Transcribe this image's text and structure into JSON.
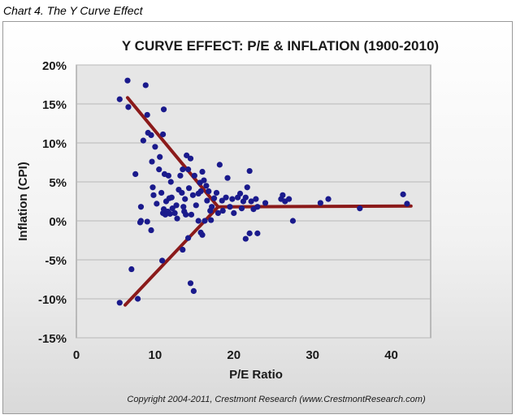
{
  "caption": "Chart 4. The Y Curve Effect",
  "copyright": "Copyright 2004-2011,  Crestmont Research (www.CrestmontResearch.com)",
  "colors": {
    "points": "#1a1a8c",
    "trend": "#8b1a1a",
    "plot_bg": "#e6e6e6",
    "grid": "#b8b8b8"
  },
  "chart_data": {
    "type": "scatter",
    "title": "Y CURVE EFFECT: P/E & INFLATION (1900-2010)",
    "xlabel": "P/E Ratio",
    "ylabel": "Inflation (CPI)",
    "xlim": [
      0,
      45
    ],
    "ylim": [
      -15,
      20
    ],
    "x_ticks": [
      0,
      10,
      20,
      30,
      40
    ],
    "y_ticks": [
      20,
      15,
      10,
      5,
      0,
      -5,
      -10,
      -15
    ],
    "x_tick_labels": [
      "0",
      "10",
      "20",
      "30",
      "40"
    ],
    "y_tick_labels": [
      "20%",
      "15%",
      "10%",
      "5%",
      "0%",
      "-5%",
      "-10%",
      "-15%"
    ],
    "grid": "horizontal",
    "series": [
      {
        "type": "scatter",
        "points": [
          [
            5.5,
            15.6
          ],
          [
            6.5,
            18.0
          ],
          [
            6.6,
            14.6
          ],
          [
            7.5,
            6.0
          ],
          [
            8.2,
            1.8
          ],
          [
            8.5,
            10.3
          ],
          [
            8.8,
            17.4
          ],
          [
            9.0,
            13.6
          ],
          [
            9.1,
            11.3
          ],
          [
            9.5,
            11.0
          ],
          [
            9.6,
            7.6
          ],
          [
            9.7,
            4.3
          ],
          [
            9.8,
            3.3
          ],
          [
            10.0,
            9.5
          ],
          [
            10.2,
            2.2
          ],
          [
            10.5,
            6.6
          ],
          [
            10.6,
            8.2
          ],
          [
            10.8,
            3.6
          ],
          [
            11.0,
            11.1
          ],
          [
            11.1,
            14.3
          ],
          [
            11.2,
            6.0
          ],
          [
            11.0,
            1.0
          ],
          [
            11.1,
            1.5
          ],
          [
            11.3,
            0.8
          ],
          [
            11.4,
            2.5
          ],
          [
            11.6,
            1.2
          ],
          [
            11.7,
            5.8
          ],
          [
            11.8,
            2.9
          ],
          [
            11.9,
            0.9
          ],
          [
            12.0,
            5.0
          ],
          [
            12.1,
            3.0
          ],
          [
            12.2,
            1.6
          ],
          [
            12.5,
            1.0
          ],
          [
            12.7,
            2.0
          ],
          [
            13.0,
            4.0
          ],
          [
            13.2,
            5.8
          ],
          [
            13.4,
            3.6
          ],
          [
            13.5,
            6.6
          ],
          [
            13.6,
            1.8
          ],
          [
            13.7,
            1.2
          ],
          [
            13.8,
            2.8
          ],
          [
            13.9,
            0.8
          ],
          [
            14.0,
            8.4
          ],
          [
            14.2,
            6.6
          ],
          [
            14.3,
            4.2
          ],
          [
            14.5,
            8.0
          ],
          [
            14.6,
            0.8
          ],
          [
            14.8,
            3.3
          ],
          [
            15.0,
            5.8
          ],
          [
            15.2,
            2.0
          ],
          [
            15.5,
            3.5
          ],
          [
            15.7,
            4.9
          ],
          [
            15.8,
            3.8
          ],
          [
            16.0,
            6.3
          ],
          [
            16.2,
            5.2
          ],
          [
            16.5,
            4.5
          ],
          [
            16.6,
            2.6
          ],
          [
            16.8,
            3.8
          ],
          [
            17.0,
            1.3
          ],
          [
            17.2,
            1.8
          ],
          [
            17.5,
            2.9
          ],
          [
            17.8,
            3.6
          ],
          [
            18.0,
            1.0
          ],
          [
            18.2,
            7.2
          ],
          [
            18.5,
            2.6
          ],
          [
            18.6,
            1.3
          ],
          [
            19.0,
            3.0
          ],
          [
            19.2,
            5.5
          ],
          [
            19.5,
            1.8
          ],
          [
            19.8,
            2.8
          ],
          [
            20.0,
            1.0
          ],
          [
            20.5,
            3.0
          ],
          [
            20.8,
            3.5
          ],
          [
            21.0,
            1.6
          ],
          [
            21.2,
            2.5
          ],
          [
            21.5,
            3.0
          ],
          [
            21.7,
            4.3
          ],
          [
            22.0,
            6.4
          ],
          [
            22.2,
            2.5
          ],
          [
            22.5,
            1.5
          ],
          [
            22.8,
            2.8
          ],
          [
            23.0,
            1.8
          ],
          [
            24.0,
            2.3
          ],
          [
            26.0,
            2.8
          ],
          [
            26.2,
            3.3
          ],
          [
            26.5,
            2.5
          ],
          [
            27.0,
            2.8
          ],
          [
            27.5,
            0.0
          ],
          [
            31.0,
            2.3
          ],
          [
            32.0,
            2.8
          ],
          [
            36.0,
            1.6
          ],
          [
            41.5,
            3.4
          ],
          [
            42.0,
            2.2
          ],
          [
            5.5,
            -10.5
          ],
          [
            7.0,
            -6.2
          ],
          [
            7.8,
            -10.0
          ],
          [
            8.2,
            0.0
          ],
          [
            9.5,
            -1.2
          ],
          [
            10.9,
            -5.1
          ],
          [
            13.5,
            -3.7
          ],
          [
            14.2,
            -2.2
          ],
          [
            14.5,
            -8.0
          ],
          [
            14.9,
            -9.0
          ],
          [
            15.8,
            -1.5
          ],
          [
            16.0,
            -1.8
          ],
          [
            16.3,
            0.0
          ],
          [
            17.1,
            0.1
          ],
          [
            21.5,
            -2.3
          ],
          [
            22.0,
            -1.6
          ],
          [
            23.0,
            -1.6
          ],
          [
            15.5,
            0.0
          ],
          [
            12.8,
            0.3
          ],
          [
            9.0,
            -0.1
          ],
          [
            8.1,
            -0.2
          ]
        ]
      },
      {
        "type": "line",
        "points": [
          [
            6.5,
            15.8
          ],
          [
            18.0,
            1.8
          ]
        ]
      },
      {
        "type": "line",
        "points": [
          [
            6.2,
            -10.8
          ],
          [
            18.0,
            1.8
          ]
        ]
      },
      {
        "type": "line",
        "points": [
          [
            18.0,
            1.8
          ],
          [
            42.5,
            1.9
          ]
        ]
      }
    ]
  }
}
